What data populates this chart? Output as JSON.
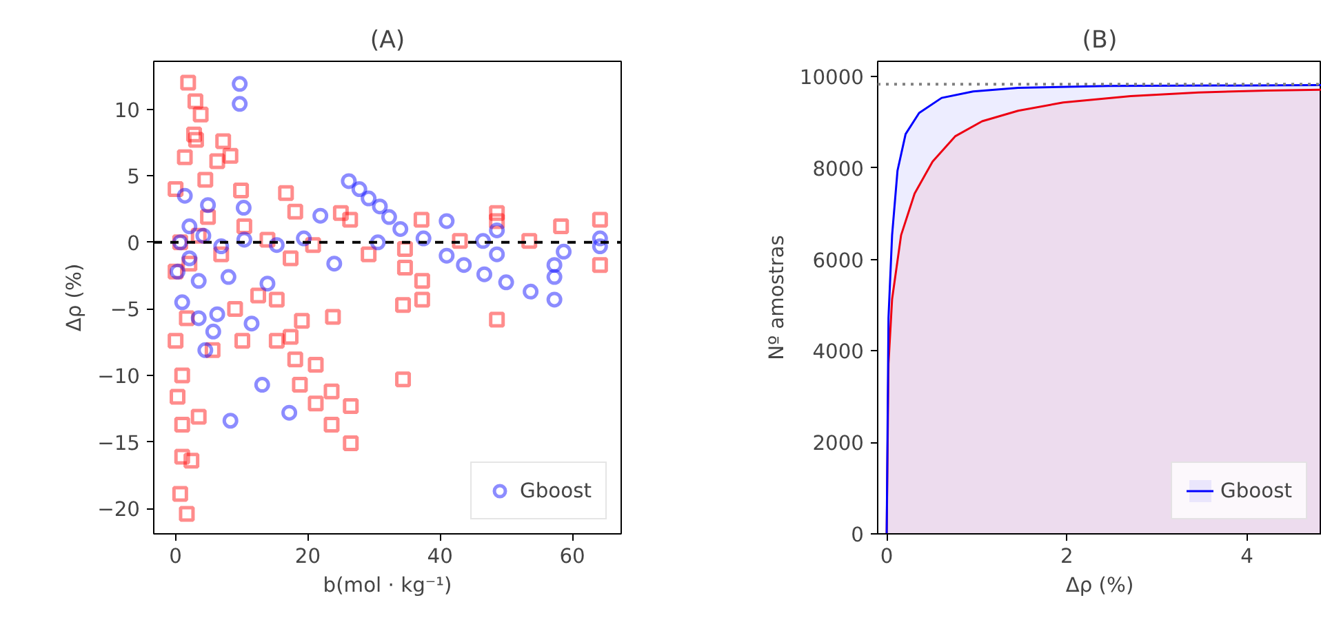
{
  "chart_data": [
    {
      "type": "scatter",
      "title": "(A)",
      "xlabel": "b(mol · kg⁻¹)",
      "ylabel": "Δρ (%)",
      "xlim": [
        -3.3,
        67.4
      ],
      "ylim": [
        -21.9,
        13.6
      ],
      "xticks": [
        0,
        20,
        40,
        60
      ],
      "yticks": [
        -20,
        -15,
        -10,
        -5,
        0,
        5,
        10
      ],
      "legend": "bottom right",
      "grid": false,
      "ref_lines": [
        {
          "axis": "y",
          "value": 0,
          "color": "#000000",
          "line_style": "dashed"
        }
      ],
      "series": [
        {
          "color": "#ff0000",
          "marker": "square",
          "x": [
            1.9,
            3.0,
            3.8,
            2.8,
            3.1,
            7.2,
            8.3,
            6.3,
            1.4,
            4.5,
            9.9,
            16.7,
            0,
            18.1,
            25,
            26.4,
            37.2,
            48.6,
            48.6,
            58.3,
            64.2,
            64.2,
            43,
            53.5,
            34.7,
            29.2,
            34.7,
            37.3,
            37.3,
            34.4,
            48.6,
            34.4,
            23.8,
            19.1,
            17.4,
            18.1,
            18.8,
            21.2,
            21.2,
            23.6,
            23.6,
            26.5,
            26.5,
            15.3,
            15.3,
            12.5,
            10.1,
            9.0,
            5.6,
            3.5,
            1.0,
            1.0,
            0.7,
            1.7,
            2.4,
            0.3,
            1.0,
            0,
            1.7,
            0,
            0.7,
            3.5,
            6.9,
            13.9,
            20.8,
            10.4,
            17.4,
            4.9,
            2.1
          ],
          "values": [
            12.0,
            10.6,
            9.6,
            8.1,
            7.7,
            7.6,
            6.5,
            6.1,
            6.4,
            4.7,
            3.9,
            3.7,
            4,
            2.3,
            2.2,
            1.7,
            1.7,
            2.2,
            1.6,
            1.2,
            1.7,
            -1.7,
            0.1,
            0.1,
            -0.5,
            -0.9,
            -1.9,
            -2.9,
            -4.3,
            -4.7,
            -5.8,
            -10.3,
            -5.6,
            -5.9,
            -7.1,
            -8.8,
            -10.7,
            -9.2,
            -12.1,
            -11.2,
            -13.7,
            -12.3,
            -15.1,
            -4.3,
            -7.4,
            -4.0,
            -7.4,
            -5.0,
            -8.1,
            -13.1,
            -13.7,
            -16.1,
            -18.9,
            -20.4,
            -16.4,
            -11.6,
            -10.0,
            -7.4,
            -5.7,
            -2.2,
            0,
            0.5,
            -0.9,
            0.2,
            -0.2,
            1.2,
            -1.2,
            1.9,
            -1.6
          ]
        },
        {
          "name": "Gboost",
          "color": "#0000ff",
          "marker": "circle",
          "x": [
            9.7,
            9.7,
            26.2,
            27.8,
            29.2,
            30.9,
            32.3,
            34,
            41,
            21.9,
            10.3,
            1.4,
            4.9,
            41,
            43.6,
            46.7,
            50,
            53.7,
            57.3,
            57.3,
            57.3,
            58.7,
            64.2,
            64.2,
            48.6,
            48.6,
            46.5,
            37.5,
            30.6,
            24,
            13.9,
            11.5,
            5.7,
            4.5,
            6.3,
            3.5,
            1.0,
            8.0,
            13.1,
            8.3,
            17.2,
            0.7,
            2.1,
            2.1,
            4.2,
            6.9,
            10.4,
            15.3,
            19.4,
            0.3,
            3.5
          ],
          "values": [
            11.9,
            10.4,
            4.6,
            4.0,
            3.3,
            2.7,
            1.9,
            1.0,
            1.6,
            2.0,
            2.6,
            3.5,
            2.8,
            -1.0,
            -1.7,
            -2.4,
            -3.0,
            -3.7,
            -4.3,
            -2.6,
            -1.7,
            -0.7,
            0.3,
            -0.3,
            0.9,
            -0.9,
            0.1,
            0.3,
            0,
            -1.6,
            -3.1,
            -6.1,
            -6.7,
            -8.1,
            -5.4,
            -5.7,
            -4.5,
            -2.6,
            -10.7,
            -13.4,
            -12.8,
            0,
            1.2,
            -1.2,
            0.5,
            -0.3,
            0.2,
            -0.2,
            0.3,
            -2.2,
            -2.9
          ]
        }
      ]
    },
    {
      "type": "area",
      "title": "(B)",
      "xlabel": "Δρ (%)",
      "ylabel": "Nº amostras",
      "xlim": [
        -0.1,
        4.83
      ],
      "ylim": [
        0,
        10330
      ],
      "xticks": [
        0,
        2,
        4
      ],
      "yticks": [
        0,
        2000,
        4000,
        6000,
        8000,
        10000
      ],
      "legend": "bottom right",
      "grid": false,
      "ref_lines": [
        {
          "axis": "y",
          "value": 9830,
          "color": "#808080",
          "line_style": "dotted"
        }
      ],
      "series": [
        {
          "color": "#ff0000",
          "x": [
            0,
            0.02,
            0.06,
            0.16,
            0.31,
            0.51,
            0.76,
            1.06,
            1.46,
            1.96,
            2.71,
            3.46,
            4.21,
            4.83
          ],
          "values": [
            0,
            3720,
            5130,
            6530,
            7440,
            8140,
            8690,
            9020,
            9250,
            9430,
            9570,
            9650,
            9690,
            9710
          ]
        },
        {
          "name": "Gboost",
          "color": "#0000ff",
          "x": [
            0,
            0.02,
            0.06,
            0.12,
            0.21,
            0.36,
            0.61,
            0.96,
            1.46,
            2.46,
            4.83
          ],
          "values": [
            0,
            4720,
            6530,
            7940,
            8740,
            9200,
            9530,
            9670,
            9750,
            9790,
            9810
          ]
        }
      ]
    }
  ]
}
